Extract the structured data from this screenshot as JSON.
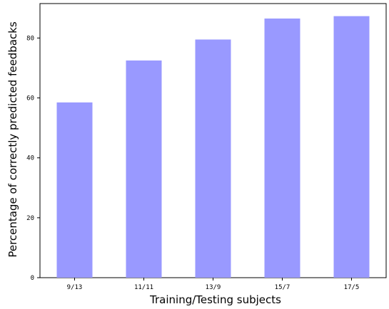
{
  "chart_data": {
    "type": "bar",
    "categories": [
      "9/13",
      "11/11",
      "13/9",
      "15/7",
      "17/5"
    ],
    "values": [
      58.5,
      72.5,
      79.5,
      86.5,
      87.3
    ],
    "xlabel": "Training/Testing subjects",
    "ylabel": "Percentage of correctly predicted feedbacks",
    "ylim": [
      0,
      91.5
    ],
    "yticks": [
      0,
      20,
      40,
      60,
      80
    ],
    "bar_color": "#9999ff",
    "grid": false
  }
}
